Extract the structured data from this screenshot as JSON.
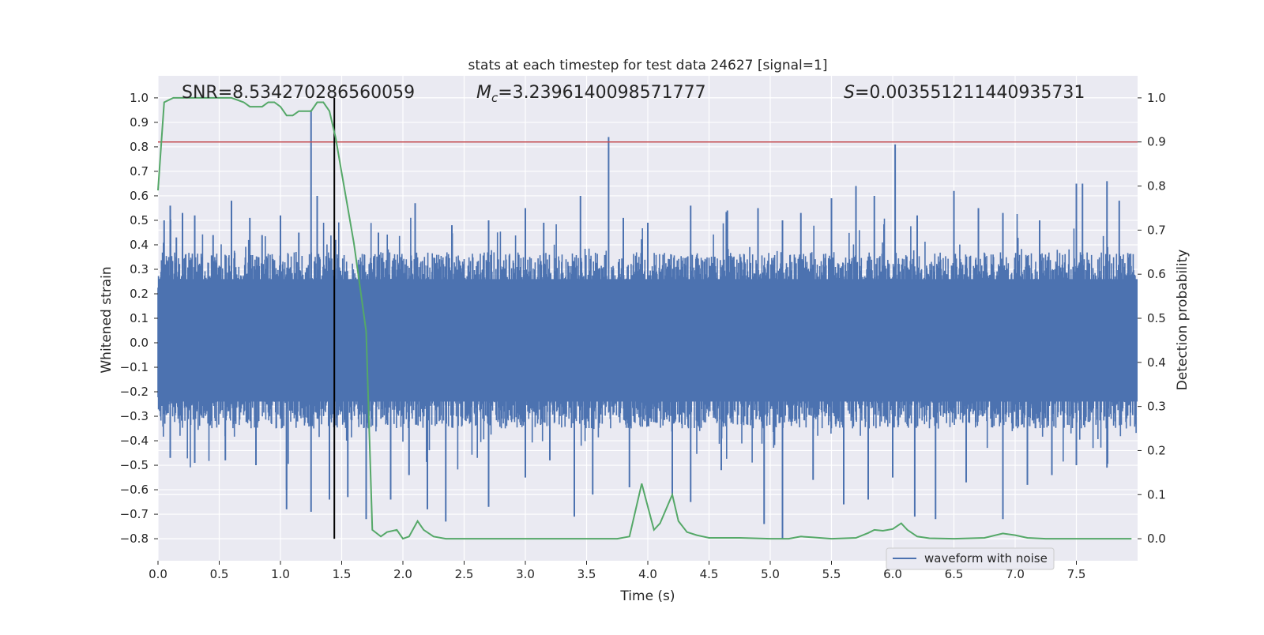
{
  "chart_data": {
    "type": "line",
    "title": "stats at each timestep for test data 24627 [signal=1]",
    "xlabel": "Time (s)",
    "ylabel": "Whitened strain",
    "ylabel_right": "Detection probability",
    "xlim": [
      0.0,
      8.0
    ],
    "ylim": [
      -0.89,
      1.09
    ],
    "ylim_right": [
      -0.05,
      1.05
    ],
    "x_ticks": [
      0.0,
      0.5,
      1.0,
      1.5,
      2.0,
      2.5,
      3.0,
      3.5,
      4.0,
      4.5,
      5.0,
      5.5,
      6.0,
      6.5,
      7.0,
      7.5
    ],
    "x_tick_labels": [
      "0.0",
      "0.5",
      "1.0",
      "1.5",
      "2.0",
      "2.5",
      "3.0",
      "3.5",
      "4.0",
      "4.5",
      "5.0",
      "5.5",
      "6.0",
      "6.5",
      "7.0",
      "7.5"
    ],
    "y_ticks": [
      1.0,
      0.9,
      0.8,
      0.7,
      0.6,
      0.5,
      0.4,
      0.3,
      0.2,
      0.1,
      0.0,
      -0.1,
      -0.2,
      -0.3,
      -0.4,
      -0.5,
      -0.6,
      -0.7,
      -0.8
    ],
    "y_tick_labels": [
      "1.0",
      "0.9",
      "0.8",
      "0.7",
      "0.6",
      "0.5",
      "0.4",
      "0.3",
      "0.2",
      "0.1",
      "0.0",
      "−0.1",
      "−0.2",
      "−0.3",
      "−0.4",
      "−0.5",
      "−0.6",
      "−0.7",
      "−0.8"
    ],
    "y_right_ticks": [
      1.0,
      0.9,
      0.8,
      0.7,
      0.6,
      0.5,
      0.4,
      0.3,
      0.2,
      0.1,
      0.0
    ],
    "y_right_tick_labels": [
      "1.0",
      "0.9",
      "0.8",
      "0.7",
      "0.6",
      "0.5",
      "0.4",
      "0.3",
      "0.2",
      "0.1",
      "0.0"
    ],
    "grid": true,
    "legend": {
      "position": "lower-right",
      "entries": [
        "waveform with noise"
      ]
    },
    "annotations": {
      "snr": "SNR=8.534270286560059",
      "mc_symbol": "M",
      "mc_sub": "c",
      "mc_value": "=3.2396140098571777",
      "s_symbol": "S",
      "s_value": "=0.003551211440935731"
    },
    "series": [
      {
        "name": "waveform with noise",
        "axis": "left",
        "color": "#4c72b0",
        "envelope": {
          "upper_typical": 0.28,
          "lower_typical": -0.26
        },
        "spikes": [
          [
            0.05,
            0.5
          ],
          [
            0.1,
            0.56
          ],
          [
            0.15,
            0.43
          ],
          [
            0.2,
            0.53
          ],
          [
            0.3,
            0.52
          ],
          [
            0.45,
            0.44
          ],
          [
            0.6,
            0.58
          ],
          [
            0.75,
            0.51
          ],
          [
            0.85,
            0.44
          ],
          [
            1.0,
            0.52
          ],
          [
            1.15,
            0.45
          ],
          [
            1.25,
            0.95
          ],
          [
            1.3,
            0.6
          ],
          [
            1.45,
            0.42
          ],
          [
            1.8,
            0.45
          ],
          [
            2.1,
            0.57
          ],
          [
            2.4,
            0.48
          ],
          [
            2.7,
            0.5
          ],
          [
            3.0,
            0.55
          ],
          [
            3.15,
            0.49
          ],
          [
            3.45,
            0.6
          ],
          [
            3.68,
            0.84
          ],
          [
            3.8,
            0.51
          ],
          [
            4.0,
            0.49
          ],
          [
            4.35,
            0.56
          ],
          [
            4.65,
            0.54
          ],
          [
            4.9,
            0.55
          ],
          [
            5.1,
            0.5
          ],
          [
            5.25,
            0.53
          ],
          [
            5.5,
            0.59
          ],
          [
            5.7,
            0.64
          ],
          [
            5.85,
            0.6
          ],
          [
            6.02,
            0.81
          ],
          [
            6.2,
            0.52
          ],
          [
            6.5,
            0.62
          ],
          [
            6.7,
            0.55
          ],
          [
            6.9,
            0.53
          ],
          [
            7.2,
            0.5
          ],
          [
            7.5,
            0.65
          ],
          [
            7.55,
            0.65
          ],
          [
            7.75,
            0.66
          ],
          [
            7.85,
            0.58
          ],
          [
            0.1,
            -0.47
          ],
          [
            0.3,
            -0.49
          ],
          [
            0.55,
            -0.48
          ],
          [
            0.8,
            -0.5
          ],
          [
            1.05,
            -0.6
          ],
          [
            1.05,
            -0.68
          ],
          [
            1.25,
            -0.69
          ],
          [
            1.4,
            -0.64
          ],
          [
            1.55,
            -0.63
          ],
          [
            1.7,
            -0.72
          ],
          [
            1.9,
            -0.64
          ],
          [
            2.05,
            -0.54
          ],
          [
            2.2,
            -0.68
          ],
          [
            2.35,
            -0.73
          ],
          [
            2.7,
            -0.67
          ],
          [
            3.0,
            -0.55
          ],
          [
            3.2,
            -0.48
          ],
          [
            3.4,
            -0.71
          ],
          [
            3.55,
            -0.62
          ],
          [
            3.85,
            -0.59
          ],
          [
            4.2,
            -0.62
          ],
          [
            4.35,
            -0.65
          ],
          [
            4.6,
            -0.52
          ],
          [
            4.95,
            -0.74
          ],
          [
            5.1,
            -0.8
          ],
          [
            5.35,
            -0.56
          ],
          [
            5.6,
            -0.66
          ],
          [
            5.8,
            -0.64
          ],
          [
            6.0,
            -0.55
          ],
          [
            6.18,
            -0.71
          ],
          [
            6.35,
            -0.72
          ],
          [
            6.6,
            -0.57
          ],
          [
            6.9,
            -0.72
          ],
          [
            7.1,
            -0.58
          ],
          [
            7.3,
            -0.54
          ],
          [
            7.5,
            -0.5
          ],
          [
            7.75,
            -0.51
          ]
        ]
      },
      {
        "name": "",
        "axis": "right",
        "color": "#55a868",
        "x": [
          0.0,
          0.05,
          0.125,
          0.2,
          0.3,
          0.4,
          0.5,
          0.6,
          0.7,
          0.75,
          0.8,
          0.85,
          0.9,
          0.95,
          1.0,
          1.05,
          1.1,
          1.15,
          1.2,
          1.25,
          1.3,
          1.35,
          1.4,
          1.45,
          1.5,
          1.55,
          1.6,
          1.65,
          1.7,
          1.75,
          1.82,
          1.87,
          1.95,
          2.0,
          2.05,
          2.12,
          2.17,
          2.25,
          2.35,
          2.5,
          2.75,
          3.0,
          3.25,
          3.4,
          3.5,
          3.75,
          3.85,
          3.95,
          4.05,
          4.1,
          4.2,
          4.25,
          4.32,
          4.4,
          4.5,
          4.75,
          5.0,
          5.15,
          5.25,
          5.35,
          5.5,
          5.7,
          5.8,
          5.85,
          5.92,
          6.0,
          6.07,
          6.12,
          6.2,
          6.3,
          6.5,
          6.75,
          6.9,
          7.0,
          7.1,
          7.25,
          7.5,
          7.75,
          7.95
        ],
        "values": [
          0.79,
          0.99,
          1.0,
          1.0,
          1.0,
          1.0,
          1.0,
          1.0,
          0.99,
          0.98,
          0.98,
          0.98,
          0.99,
          0.99,
          0.98,
          0.96,
          0.96,
          0.97,
          0.97,
          0.97,
          0.99,
          0.99,
          0.97,
          0.91,
          0.83,
          0.75,
          0.67,
          0.57,
          0.47,
          0.02,
          0.005,
          0.015,
          0.02,
          0.0,
          0.005,
          0.04,
          0.02,
          0.005,
          0.0,
          0.0,
          0.0,
          0.0,
          0.0,
          0.0,
          0.0,
          0.0,
          0.005,
          0.125,
          0.02,
          0.035,
          0.1,
          0.04,
          0.015,
          0.008,
          0.002,
          0.002,
          0.0,
          0.0,
          0.005,
          0.003,
          0.0,
          0.002,
          0.013,
          0.02,
          0.018,
          0.022,
          0.035,
          0.02,
          0.005,
          0.001,
          0.0,
          0.002,
          0.012,
          0.008,
          0.002,
          0.0,
          0.0,
          0.0,
          0.0
        ]
      }
    ],
    "reference_lines": [
      {
        "kind": "horizontal",
        "axis": "right",
        "value": 0.9,
        "color": "#c44e52"
      },
      {
        "kind": "vertical",
        "x": 1.44,
        "y_from": -0.8,
        "y_to": 1.0,
        "color": "#000000"
      }
    ]
  }
}
